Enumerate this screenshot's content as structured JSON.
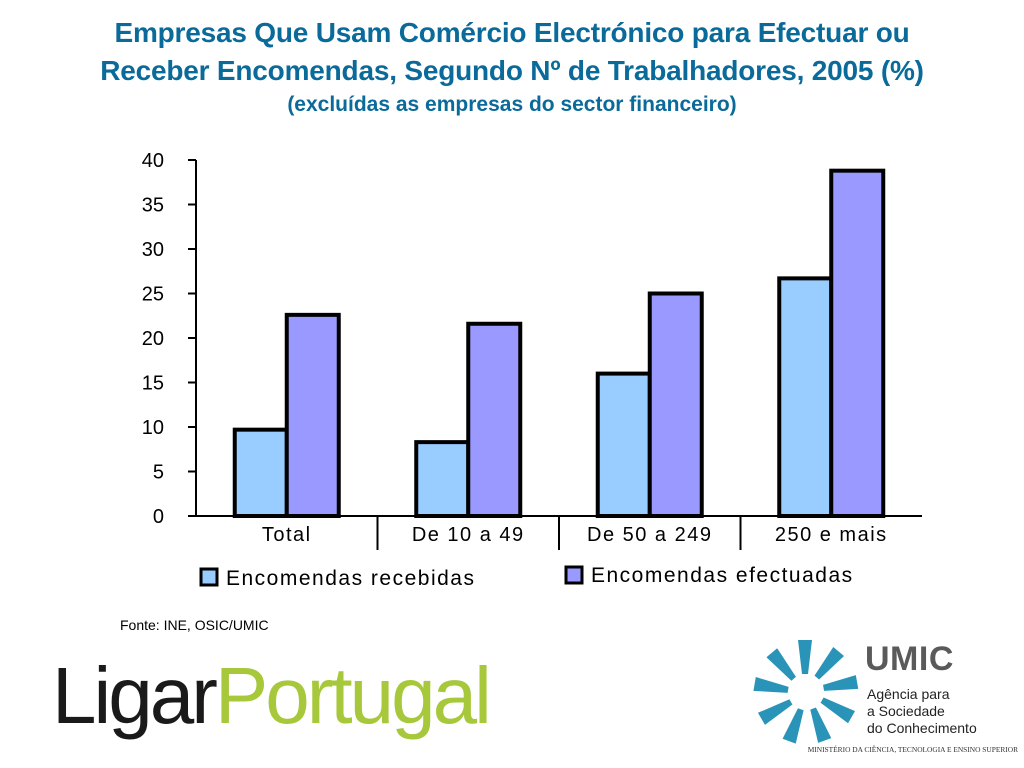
{
  "header": {
    "title_line1": "Empresas Que Usam  Comércio Electrónico para Efectuar ou",
    "title_line2": "Receber Encomendas, Segundo Nº de Trabalhadores, 2005 (%)",
    "subtitle": "(excluídas as empresas do sector financeiro)"
  },
  "chart_data": {
    "type": "bar",
    "title": "Empresas Que Usam  Comércio Electrónico para Efectuar ou Receber Encomendas, Segundo Nº de Trabalhadores, 2005 (%)",
    "subtitle": "(excluídas as empresas do sector financeiro)",
    "categories": [
      "Total",
      "De 10 a 49",
      "De 50 a 249",
      "250 e mais"
    ],
    "series": [
      {
        "name": "Encomendas recebidas",
        "values": [
          9.7,
          8.3,
          16.0,
          26.7
        ],
        "color": "#99ccff"
      },
      {
        "name": "Encomendas efectuadas",
        "values": [
          22.6,
          21.6,
          25.0,
          38.8
        ],
        "color": "#9999ff"
      }
    ],
    "ylim": [
      0,
      40
    ],
    "yticks": [
      "0",
      "5",
      "10",
      "15",
      "20",
      "25",
      "30",
      "35",
      "40"
    ],
    "xlabel": "",
    "ylabel": "",
    "grid": false,
    "legend": "bottom"
  },
  "footer": {
    "source": "Fonte: INE, OSIC/UMIC",
    "logo_ligar": "Ligar",
    "logo_portugal": "Portugal",
    "umic_name": "UMIC",
    "umic_tagline": [
      "Agência para",
      "a Sociedade",
      "do Conhecimento"
    ],
    "ministry": "MINISTÉRIO DA CIÊNCIA, TECNOLOGIA E ENSINO SUPERIOR"
  },
  "colors": {
    "title": "#0a6a9a",
    "logo_portugal": "#a7c83a",
    "umic_logo": "#2a94b8"
  }
}
